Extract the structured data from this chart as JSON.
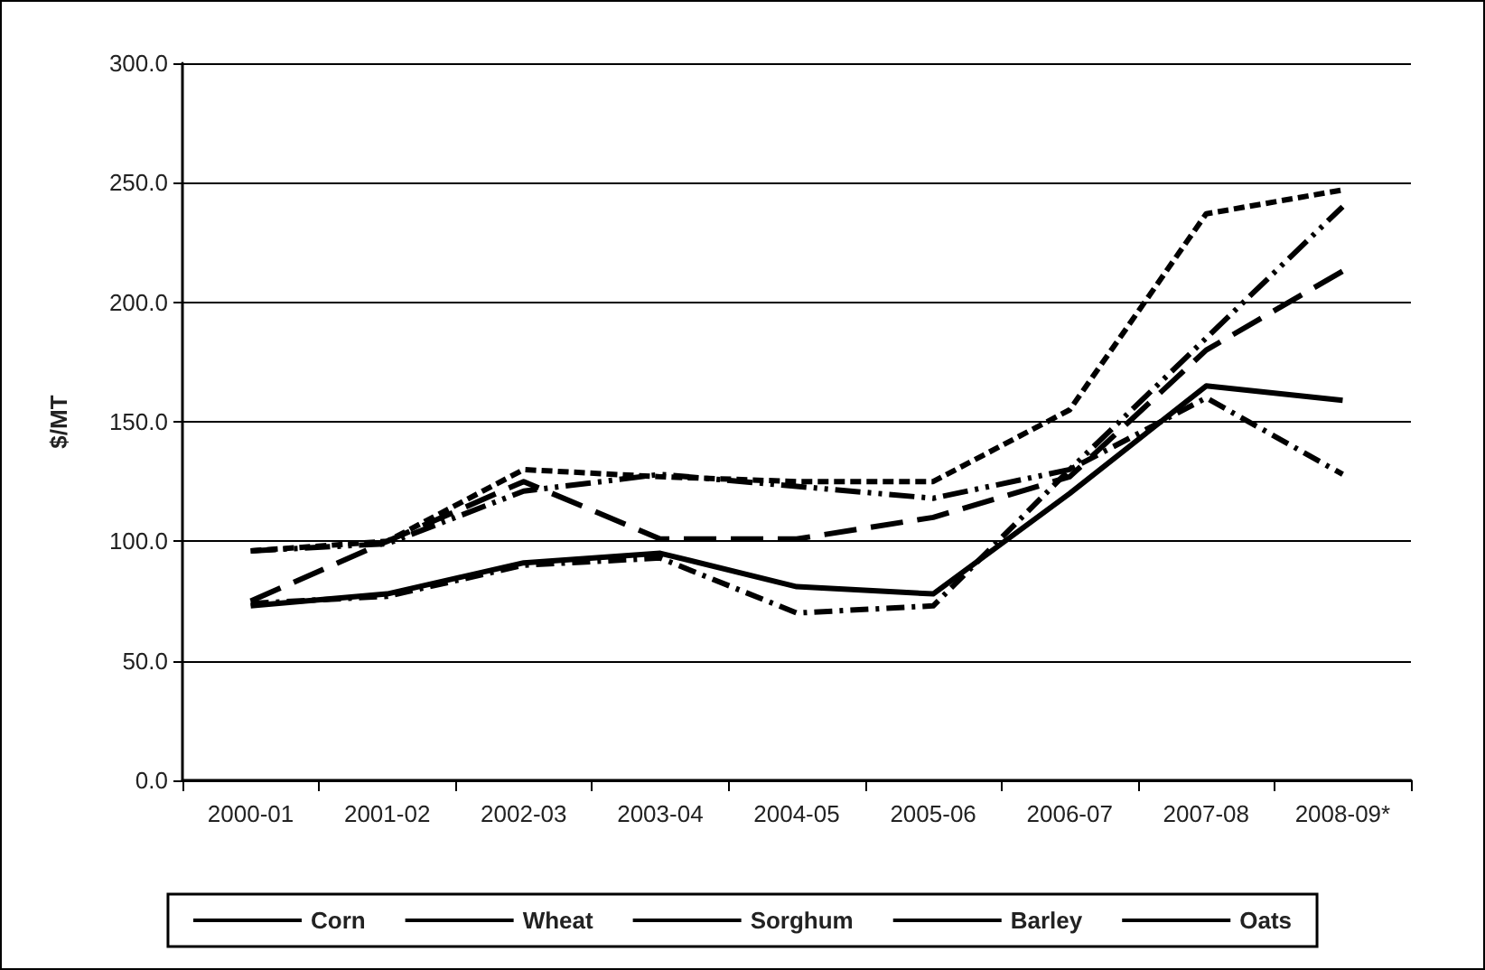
{
  "chart_data": {
    "type": "line",
    "ylabel": "$/MT",
    "categories": [
      "2000-01",
      "2001-02",
      "2002-03",
      "2003-04",
      "2004-05",
      "2005-06",
      "2006-07",
      "2007-08",
      "2008-09*"
    ],
    "series": [
      {
        "name": "Corn",
        "color": "#000000",
        "line_style": "solid",
        "values": [
          73,
          78,
          91,
          95,
          81,
          78,
          120,
          165,
          159
        ]
      },
      {
        "name": "Wheat",
        "color": "#000000",
        "line_style": "dashed",
        "values": [
          96,
          100,
          130,
          127,
          125,
          125,
          155,
          237,
          247
        ]
      },
      {
        "name": "Sorghum",
        "color": "#000000",
        "line_style": "dashdot",
        "values": [
          74,
          77,
          90,
          93,
          70,
          73,
          130,
          160,
          128
        ]
      },
      {
        "name": "Barley",
        "color": "#000000",
        "line_style": "dashdotdot",
        "values": [
          96,
          99,
          121,
          128,
          123,
          118,
          130,
          185,
          240
        ]
      },
      {
        "name": "Oats",
        "color": "#000000",
        "line_style": "longdash",
        "values": [
          75,
          100,
          125,
          101,
          101,
          110,
          127,
          180,
          213
        ]
      }
    ],
    "ylim": [
      0,
      300
    ],
    "yticks": [
      {
        "value": 0,
        "label": "0.0"
      },
      {
        "value": 50,
        "label": "50.0"
      },
      {
        "value": 100,
        "label": "100.0"
      },
      {
        "value": 150,
        "label": "150.0"
      },
      {
        "value": 200,
        "label": "200.0"
      },
      {
        "value": 250,
        "label": "250.0"
      },
      {
        "value": 300,
        "label": "300.0"
      }
    ],
    "grid": "y",
    "legend": "bottom",
    "marker": "none"
  }
}
